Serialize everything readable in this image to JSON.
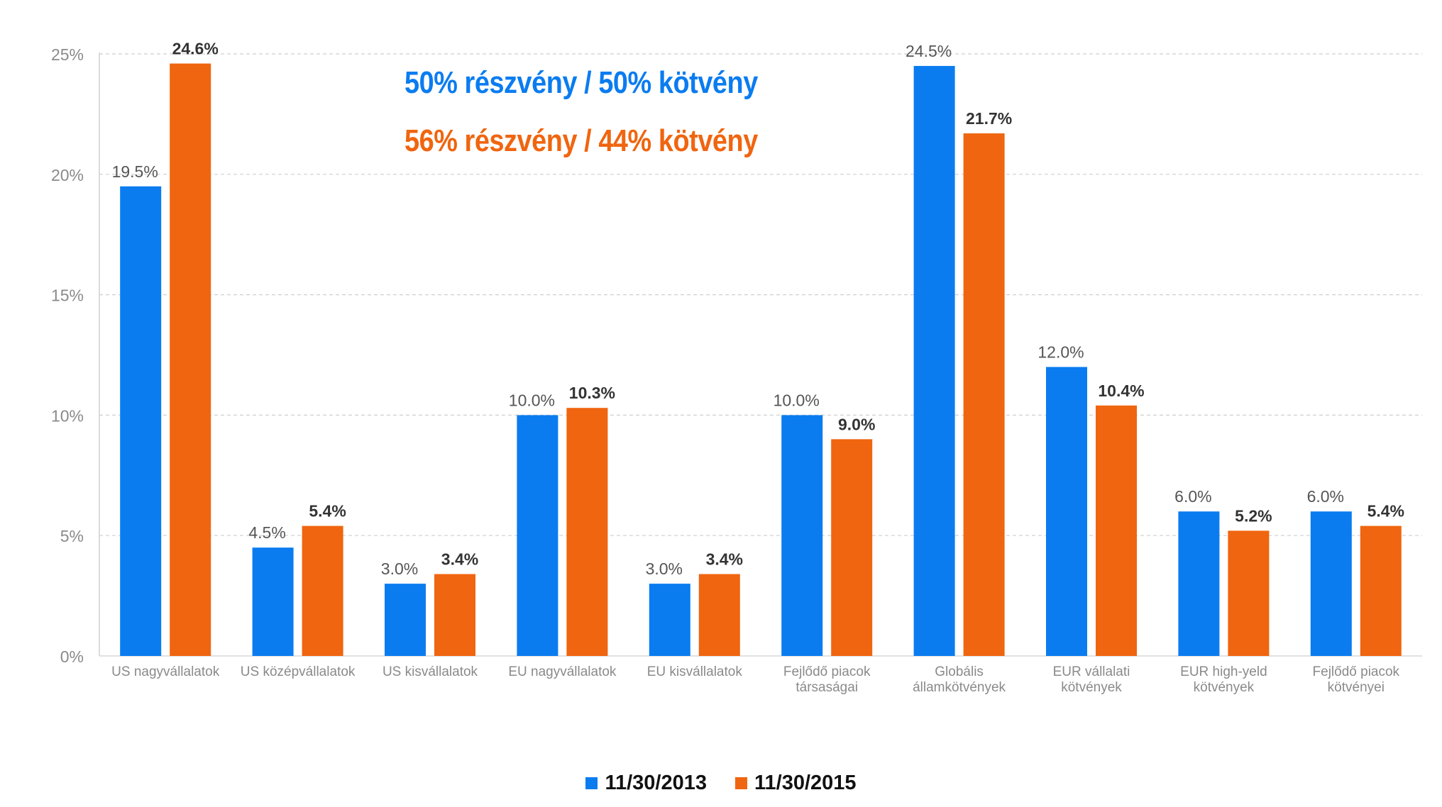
{
  "chart_data": {
    "type": "bar",
    "categories": [
      [
        "US nagyvállalatok"
      ],
      [
        "US középvállalatok"
      ],
      [
        "US kisvállalatok"
      ],
      [
        "EU nagyvállalatok"
      ],
      [
        "EU kisvállalatok"
      ],
      [
        "Fejlődő piacok",
        "társaságai"
      ],
      [
        "Globális",
        "államkötvények"
      ],
      [
        "EUR vállalati",
        "kötvények"
      ],
      [
        "EUR high-yeld",
        "kötvények"
      ],
      [
        "Fejlődő piacok",
        "kötvényei"
      ]
    ],
    "series": [
      {
        "name": "11/30/2013",
        "color": "#0a7cf0",
        "values": [
          19.5,
          4.5,
          3.0,
          10.0,
          3.0,
          10.0,
          24.5,
          12.0,
          6.0,
          6.0
        ],
        "labels": [
          "19.5%",
          "4.5%",
          "3.0%",
          "10.0%",
          "3.0%",
          "10.0%",
          "24.5%",
          "12.0%",
          "6.0%",
          "6.0%"
        ]
      },
      {
        "name": "11/30/2015",
        "color": "#f0650f",
        "values": [
          24.6,
          5.4,
          3.4,
          10.3,
          3.4,
          9.0,
          21.7,
          10.4,
          5.2,
          5.4
        ],
        "labels": [
          "24.6%",
          "5.4%",
          "3.4%",
          "10.3%",
          "3.4%",
          "9.0%",
          "21.7%",
          "10.4%",
          "5.2%",
          "5.4%"
        ]
      }
    ],
    "yticks": [
      0,
      5,
      10,
      15,
      20,
      25
    ],
    "ytick_labels": [
      "0%",
      "5%",
      "10%",
      "15%",
      "20%",
      "25%"
    ],
    "ylim": [
      0,
      25
    ],
    "grid": true,
    "legend_position": "bottom-center",
    "title": "",
    "xlabel": "",
    "ylabel": "",
    "annotations": [
      {
        "text": "50% részvény / 50% kötvény",
        "color": "#0a7cf0"
      },
      {
        "text": "56% részvény / 44% kötvény",
        "color": "#f0650f"
      }
    ]
  }
}
